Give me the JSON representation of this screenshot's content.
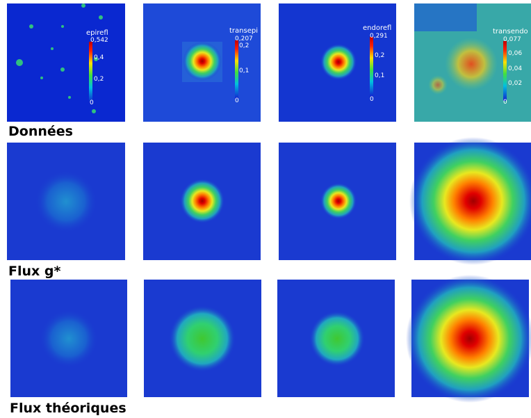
{
  "rows": [
    {
      "label": "Données",
      "colorbars": [
        {
          "title": "epirefl",
          "ticks": [
            "0,542",
            "0,4",
            "0,2",
            "0"
          ]
        },
        {
          "title": "transepi",
          "ticks": [
            "0,207",
            "0,2",
            "0,1",
            "0"
          ]
        },
        {
          "title": "endorefl",
          "ticks": [
            "0,291",
            "0,2",
            "0,1",
            "0"
          ]
        },
        {
          "title": "transendo",
          "ticks": [
            "0,077",
            "0,06",
            "0,04",
            "0,02",
            "0"
          ]
        }
      ]
    },
    {
      "label": "Flux g*"
    },
    {
      "label": "Flux théoriques"
    }
  ]
}
